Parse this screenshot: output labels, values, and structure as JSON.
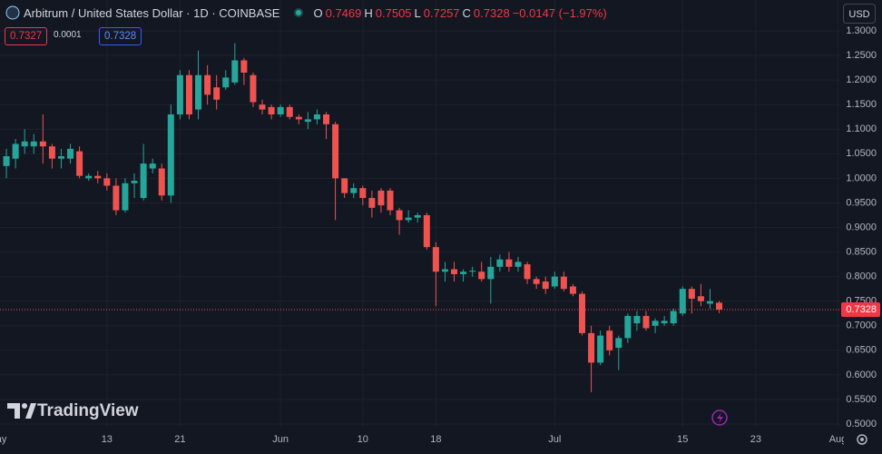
{
  "chart_data": {
    "type": "candlestick",
    "title": "Arbitrum / United States Dollar · 1D · COINBASE",
    "legend_labels": {
      "open": "O",
      "high": "H",
      "low": "L",
      "close": "C"
    },
    "change": "−0.0147 (−1.97%)",
    "bid": "0.7327",
    "spread": "0.0001",
    "ask": "0.7328",
    "currency": "USD",
    "watermark": "TradingView",
    "up_color": "#26a69a",
    "down_color": "#ef5350",
    "x": [
      1,
      2,
      3,
      4,
      5,
      6,
      7,
      8,
      9,
      10,
      11,
      12,
      13,
      14,
      15,
      16,
      17,
      18,
      19,
      20,
      21,
      22,
      23,
      24,
      25,
      26,
      27,
      28,
      29,
      30,
      31,
      32,
      33,
      34,
      35,
      36,
      37,
      38,
      39,
      40,
      41,
      42,
      43,
      44,
      45,
      46,
      47,
      48,
      49,
      50,
      51,
      52,
      53,
      54,
      55,
      56,
      57,
      58,
      59,
      60,
      61,
      62,
      63,
      64,
      65,
      66,
      67,
      68,
      69,
      70,
      71,
      72,
      73,
      74,
      75,
      76,
      77,
      78,
      79
    ],
    "open": [
      1.025,
      1.04,
      1.065,
      1.065,
      1.075,
      1.065,
      1.04,
      1.04,
      1.055,
      1.0,
      1.005,
      1.0,
      0.985,
      0.935,
      0.99,
      0.96,
      1.02,
      1.02,
      0.965,
      1.13,
      1.21,
      1.14,
      1.21,
      1.185,
      1.185,
      1.195,
      1.24,
      1.21,
      1.15,
      1.145,
      1.13,
      1.145,
      1.125,
      1.115,
      1.12,
      1.13,
      1.11,
      1.0,
      0.97,
      0.98,
      0.96,
      0.975,
      0.975,
      0.935,
      0.915,
      0.92,
      0.925,
      0.86,
      0.81,
      0.815,
      0.805,
      0.81,
      0.81,
      0.795,
      0.82,
      0.835,
      0.82,
      0.825,
      0.795,
      0.79,
      0.78,
      0.8,
      0.78,
      0.765,
      0.685,
      0.625,
      0.69,
      0.655,
      0.675,
      0.705,
      0.72,
      0.7,
      0.705,
      0.705,
      0.725,
      0.775,
      0.76,
      0.745,
      0.7469
    ],
    "high": [
      1.06,
      1.08,
      1.1,
      1.09,
      1.13,
      1.07,
      1.06,
      1.07,
      1.065,
      1.01,
      1.015,
      1.01,
      1.0,
      1.0,
      1.01,
      1.07,
      1.04,
      1.03,
      1.15,
      1.22,
      1.22,
      1.26,
      1.23,
      1.21,
      1.22,
      1.275,
      1.245,
      1.215,
      1.16,
      1.15,
      1.15,
      1.15,
      1.13,
      1.135,
      1.14,
      1.135,
      1.115,
      1.0,
      0.99,
      0.985,
      0.975,
      0.98,
      0.98,
      0.94,
      0.935,
      0.93,
      0.93,
      0.87,
      0.83,
      0.83,
      0.815,
      0.82,
      0.83,
      0.84,
      0.845,
      0.85,
      0.84,
      0.83,
      0.8,
      0.8,
      0.81,
      0.81,
      0.785,
      0.77,
      0.7,
      0.69,
      0.7,
      0.68,
      0.725,
      0.73,
      0.73,
      0.715,
      0.72,
      0.735,
      0.78,
      0.78,
      0.785,
      0.775,
      0.7505
    ],
    "low": [
      1.0,
      1.02,
      1.05,
      1.05,
      1.03,
      1.02,
      1.02,
      1.03,
      1.0,
      0.995,
      0.99,
      0.975,
      0.925,
      0.93,
      0.96,
      0.955,
      1.01,
      0.955,
      0.95,
      1.12,
      1.12,
      1.12,
      1.15,
      1.14,
      1.18,
      1.19,
      1.19,
      1.145,
      1.13,
      1.12,
      1.125,
      1.12,
      1.11,
      1.1,
      1.11,
      1.08,
      0.915,
      0.96,
      0.96,
      0.945,
      0.92,
      0.93,
      0.925,
      0.885,
      0.91,
      0.91,
      0.855,
      0.74,
      0.79,
      0.79,
      0.79,
      0.8,
      0.79,
      0.745,
      0.81,
      0.81,
      0.81,
      0.785,
      0.775,
      0.765,
      0.775,
      0.77,
      0.76,
      0.68,
      0.565,
      0.62,
      0.64,
      0.61,
      0.665,
      0.69,
      0.69,
      0.685,
      0.7,
      0.7,
      0.72,
      0.725,
      0.74,
      0.735,
      0.7257
    ],
    "close": [
      1.045,
      1.07,
      1.075,
      1.075,
      1.065,
      1.04,
      1.045,
      1.06,
      1.005,
      1.005,
      1.0,
      0.985,
      0.935,
      0.99,
      0.995,
      1.03,
      1.03,
      0.965,
      1.13,
      1.21,
      1.13,
      1.21,
      1.17,
      1.16,
      1.205,
      1.24,
      1.215,
      1.155,
      1.14,
      1.13,
      1.145,
      1.125,
      1.12,
      1.12,
      1.13,
      1.11,
      1.0,
      0.97,
      0.98,
      0.96,
      0.94,
      0.945,
      0.935,
      0.915,
      0.92,
      0.925,
      0.86,
      0.81,
      0.815,
      0.805,
      0.81,
      0.812,
      0.795,
      0.82,
      0.835,
      0.82,
      0.83,
      0.795,
      0.785,
      0.775,
      0.8,
      0.775,
      0.765,
      0.685,
      0.625,
      0.68,
      0.65,
      0.675,
      0.72,
      0.72,
      0.695,
      0.71,
      0.71,
      0.73,
      0.775,
      0.755,
      0.75,
      0.75,
      0.7328
    ],
    "xlim": [
      0.3,
      92.25
    ],
    "xticks": [
      {
        "value": 0,
        "label": "May"
      },
      {
        "value": 12,
        "label": "13"
      },
      {
        "value": 20,
        "label": "21"
      },
      {
        "value": 31,
        "label": "Jun"
      },
      {
        "value": 40,
        "label": "10"
      },
      {
        "value": 48,
        "label": "18"
      },
      {
        "value": 61,
        "label": "Jul"
      },
      {
        "value": 75,
        "label": "15"
      },
      {
        "value": 83,
        "label": "23"
      },
      {
        "value": 92,
        "label": "Aug"
      }
    ],
    "ylim": [
      0.4945,
      1.3628
    ],
    "yticks": [
      {
        "value": 0.5,
        "label": "0.5000"
      },
      {
        "value": 0.55,
        "label": "0.5500"
      },
      {
        "value": 0.6,
        "label": "0.6000"
      },
      {
        "value": 0.65,
        "label": "0.6500"
      },
      {
        "value": 0.7,
        "label": "0.7000"
      },
      {
        "value": 0.75,
        "label": "0.7500"
      },
      {
        "value": 0.8,
        "label": "0.8000"
      },
      {
        "value": 0.85,
        "label": "0.8500"
      },
      {
        "value": 0.9,
        "label": "0.9000"
      },
      {
        "value": 0.95,
        "label": "0.9500"
      },
      {
        "value": 1.0,
        "label": "1.0000"
      },
      {
        "value": 1.05,
        "label": "1.0500"
      },
      {
        "value": 1.1,
        "label": "1.1000"
      },
      {
        "value": 1.15,
        "label": "1.1500"
      },
      {
        "value": 1.2,
        "label": "1.2000"
      },
      {
        "value": 1.25,
        "label": "1.2500"
      },
      {
        "value": 1.3,
        "label": "1.3000"
      }
    ],
    "grid": true
  }
}
